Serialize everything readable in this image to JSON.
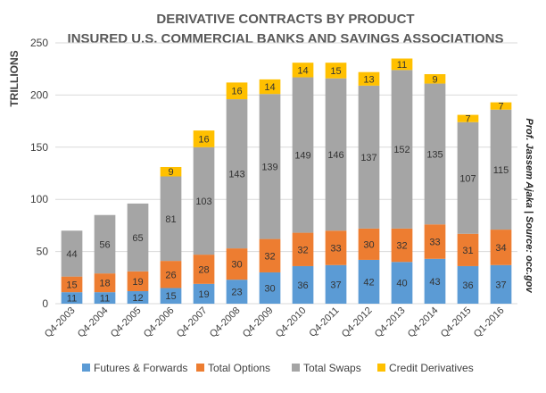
{
  "chart_data": {
    "type": "bar",
    "stacked": true,
    "title": "DERIVATIVE CONTRACTS BY PRODUCT",
    "subtitle": "INSURED U.S. COMMERCIAL BANKS AND SAVINGS ASSOCIATIONS",
    "ylabel": "TRILLIONS",
    "xlabel": "",
    "ylim": [
      0,
      250
    ],
    "yticks": [
      0,
      50,
      100,
      150,
      200,
      250
    ],
    "grid": true,
    "legend_position": "bottom",
    "categories": [
      "Q4-2003",
      "Q4-2004",
      "Q4-2005",
      "Q4-2006",
      "Q4-2007",
      "Q4-2008",
      "Q4-2009",
      "Q4-2010",
      "Q4-2011",
      "Q4-2012",
      "Q4-2013",
      "Q4-2014",
      "Q4-2015",
      "Q1-2016"
    ],
    "series": [
      {
        "name": "Futures & Forwards",
        "color": "#5B9BD5",
        "values": [
          11,
          11,
          12,
          15,
          19,
          23,
          30,
          36,
          37,
          42,
          40,
          43,
          36,
          37
        ]
      },
      {
        "name": "Total Options",
        "color": "#ED7D31",
        "values": [
          15,
          18,
          19,
          26,
          28,
          30,
          32,
          32,
          33,
          30,
          32,
          33,
          31,
          34
        ]
      },
      {
        "name": "Total Swaps",
        "color": "#A5A5A5",
        "values": [
          44,
          56,
          65,
          81,
          103,
          143,
          139,
          149,
          146,
          137,
          152,
          135,
          107,
          115
        ]
      },
      {
        "name": "Credit Derivatives",
        "color": "#FFC000",
        "values": [
          null,
          null,
          null,
          9,
          16,
          16,
          14,
          14,
          15,
          13,
          11,
          9,
          7,
          7
        ]
      }
    ],
    "side_note": "Prof. Jassem Ajaka | Source: occ.gov"
  }
}
